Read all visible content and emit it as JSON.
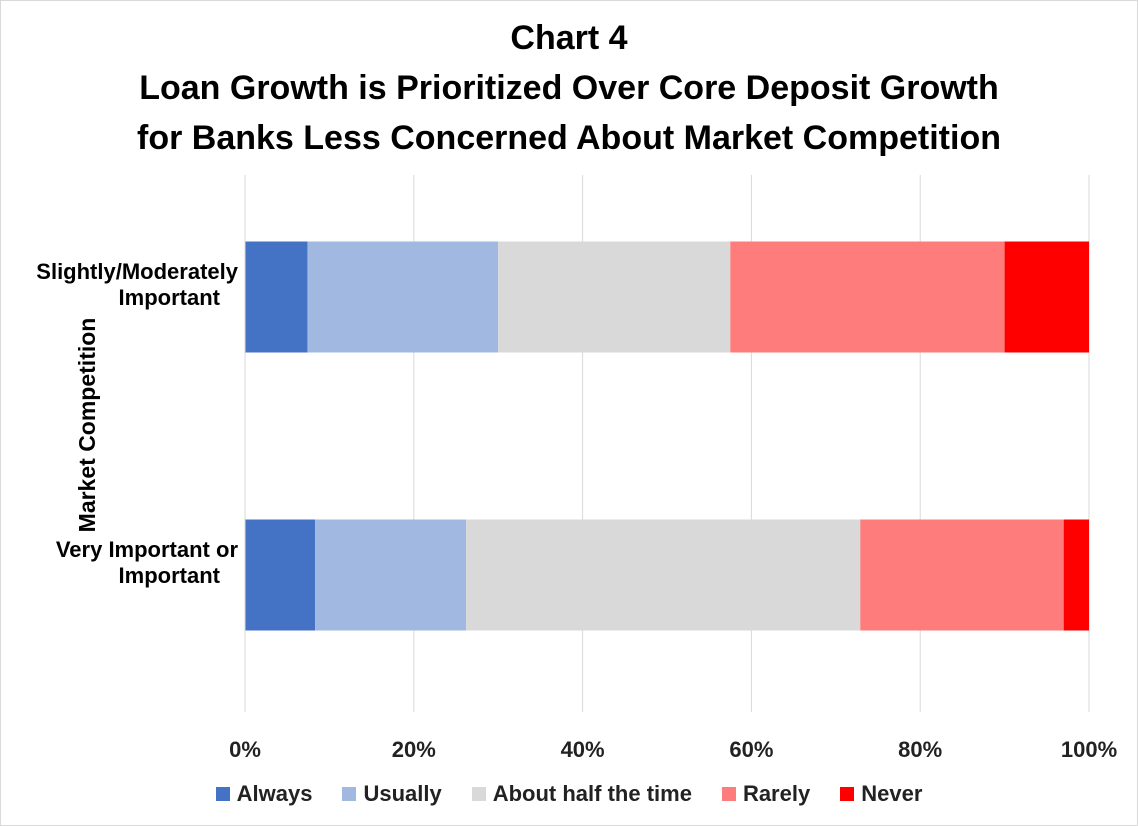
{
  "chart_data": {
    "type": "bar",
    "orientation": "horizontal",
    "stacked": true,
    "title_lines": [
      "Chart 4",
      "Loan Growth is Prioritized Over Core Deposit Growth",
      "for Banks Less Concerned About Market Competition"
    ],
    "ylabel": "Market Competition",
    "xlabel": "",
    "categories": [
      [
        "Slightly/Moderately",
        "Important"
      ],
      [
        "Very Important or",
        "Important"
      ]
    ],
    "xlim": [
      0,
      100
    ],
    "x_ticks": [
      "0%",
      "20%",
      "40%",
      "60%",
      "80%",
      "100%"
    ],
    "grid": true,
    "legend_position": "bottom",
    "series": [
      {
        "name": "Always",
        "color": "#4472c4",
        "values": [
          7.4,
          8.3
        ]
      },
      {
        "name": "Usually",
        "color": "#a1b8e1",
        "values": [
          22.6,
          17.9
        ]
      },
      {
        "name": "About half the time",
        "color": "#d9d9d9",
        "values": [
          27.5,
          46.7
        ]
      },
      {
        "name": "Rarely",
        "color": "#ff7c7c",
        "values": [
          32.5,
          24.1
        ]
      },
      {
        "name": "Never",
        "color": "#ff0000",
        "values": [
          10.0,
          3.0
        ]
      }
    ]
  }
}
